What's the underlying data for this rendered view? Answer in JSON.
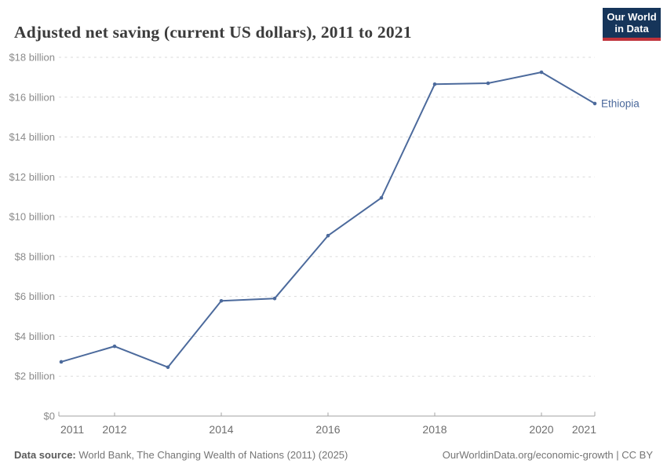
{
  "header": {
    "title": "Adjusted net saving (current US dollars), 2011 to 2021",
    "logo": {
      "line1": "Our World",
      "line2": "in Data"
    }
  },
  "chart_data": {
    "type": "line",
    "title": "Adjusted net saving (current US dollars), 2011 to 2021",
    "x": [
      2011,
      2012,
      2013,
      2014,
      2015,
      2016,
      2017,
      2018,
      2019,
      2020,
      2021
    ],
    "series": [
      {
        "name": "Ethiopia",
        "color": "#4c6a9c",
        "unit": "current US$, billions",
        "values": [
          2.72,
          3.5,
          2.45,
          5.78,
          5.9,
          9.05,
          10.95,
          16.65,
          16.7,
          17.25,
          15.68
        ]
      }
    ],
    "ylim": [
      0,
      18
    ],
    "yticks": [
      {
        "value": 0,
        "label": "$0"
      },
      {
        "value": 2,
        "label": "$2 billion"
      },
      {
        "value": 4,
        "label": "$4 billion"
      },
      {
        "value": 6,
        "label": "$6 billion"
      },
      {
        "value": 8,
        "label": "$8 billion"
      },
      {
        "value": 10,
        "label": "$10 billion"
      },
      {
        "value": 12,
        "label": "$12 billion"
      },
      {
        "value": 14,
        "label": "$14 billion"
      },
      {
        "value": 16,
        "label": "$16 billion"
      },
      {
        "value": 18,
        "label": "$18 billion"
      }
    ],
    "xticks": [
      {
        "value": 2011,
        "label": "2011",
        "align": "start"
      },
      {
        "value": 2012,
        "label": "2012"
      },
      {
        "value": 2014,
        "label": "2014"
      },
      {
        "value": 2016,
        "label": "2016"
      },
      {
        "value": 2018,
        "label": "2018"
      },
      {
        "value": 2020,
        "label": "2020"
      },
      {
        "value": 2021,
        "label": "2021",
        "align": "end"
      }
    ],
    "grid": {
      "horizontal": true,
      "style": "dashed",
      "legend": "end-of-line label"
    },
    "end_label": "Ethiopia"
  },
  "footer": {
    "source_label": "Data source:",
    "source_text": " World Bank, The Changing Wealth of Nations (2011) (2025)",
    "credit": "OurWorldinData.org/economic-growth | CC BY"
  },
  "colors": {
    "line": "#4c6a9c",
    "grid": "#dadada",
    "axis": "#a3a3a3",
    "y_tick_label": "#8b8b8b",
    "x_tick_label": "#6e6e6e",
    "title_text": "#3b3b3b",
    "footer_text": "#757575",
    "footer_label": "#5a5a5a",
    "logo_bg": "#16355a",
    "logo_stripe": "#c0333b"
  }
}
